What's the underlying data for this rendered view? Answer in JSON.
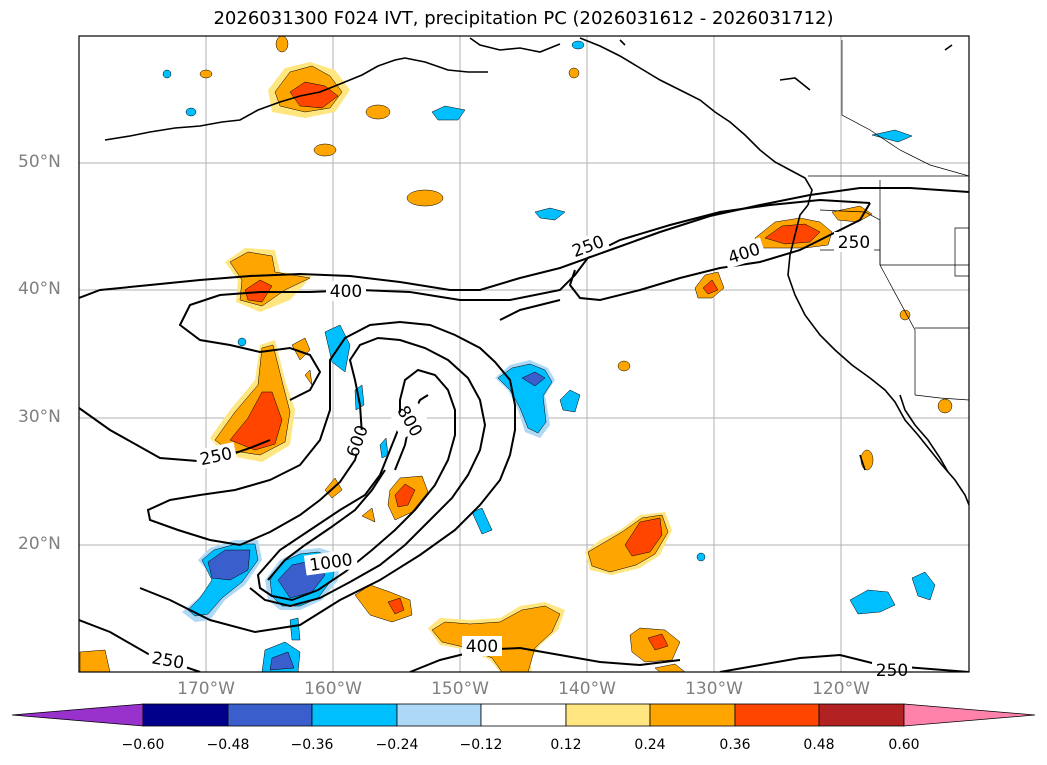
{
  "title": "2026031300 F024 IVT, precipitation PC (2026031612 - 2026031712)",
  "lat_labels": [
    "50°N",
    "40°N",
    "30°N",
    "20°N"
  ],
  "lon_labels": [
    "170°W",
    "160°W",
    "150°W",
    "140°W",
    "130°W",
    "120°W"
  ],
  "contour_labels": [
    "250",
    "400",
    "600",
    "800",
    "1000"
  ],
  "colorbar": {
    "ticks": [
      "−0.60",
      "−0.48",
      "−0.36",
      "−0.24",
      "−0.12",
      "0.12",
      "0.24",
      "0.36",
      "0.48",
      "0.60"
    ],
    "colors": [
      "#9932cc",
      "#00008b",
      "#3a5fcd",
      "#00bfff",
      "#add8f6",
      "#ffffff",
      "#ffe680",
      "#ffa500",
      "#ff4500",
      "#b22222",
      "#ff82ab"
    ]
  }
}
